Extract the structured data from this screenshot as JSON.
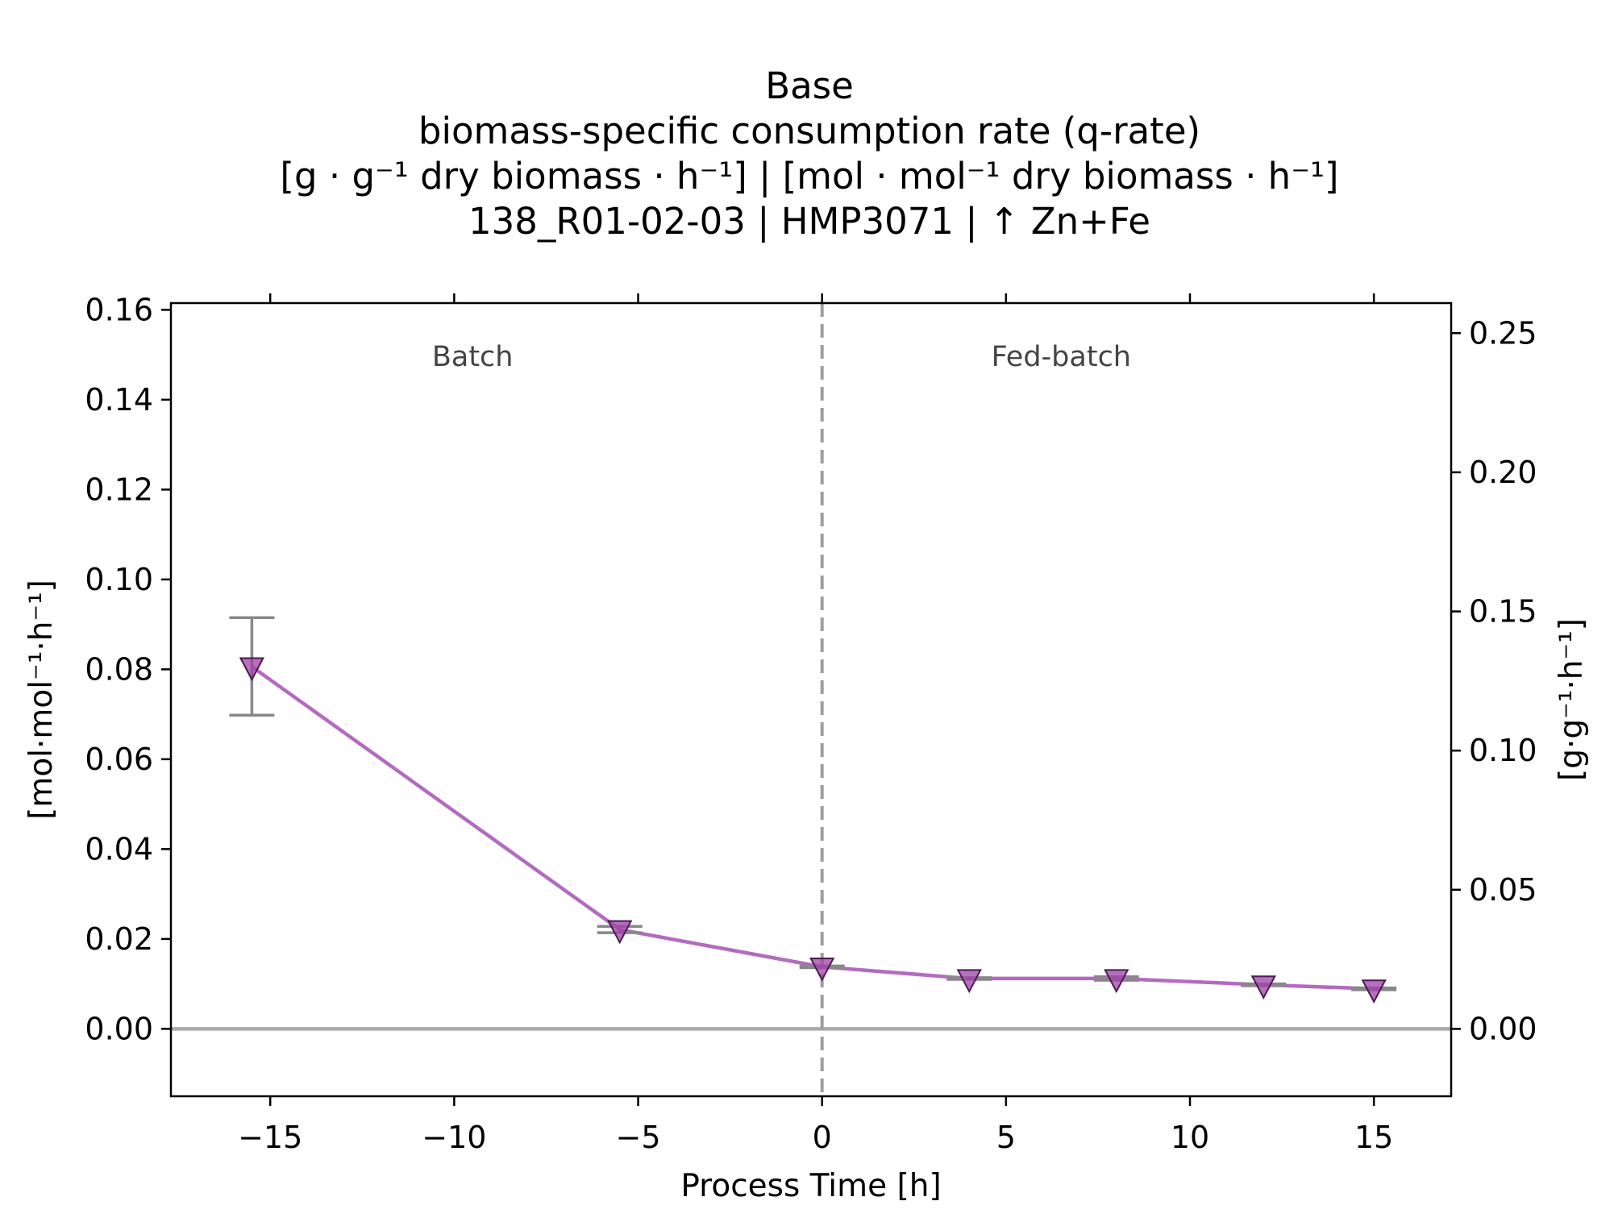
{
  "chart_data": {
    "type": "line",
    "title_lines": [
      "Base",
      "biomass-specific consumption rate (q-rate)",
      "[g · g⁻¹ dry biomass · h⁻¹]    |    [mol · mol⁻¹ dry biomass · h⁻¹]",
      "138_R01-02-03  |  HMP3071  |  ↑ Zn+Fe"
    ],
    "xlabel": "Process Time [h]",
    "ylabel_left": "[mol·mol⁻¹·h⁻¹]",
    "ylabel_right": "[g·g⁻¹·h⁻¹]",
    "xlim": [
      -17.7,
      17.1
    ],
    "ylim_left": [
      -0.015,
      0.1615
    ],
    "ylim_right": [
      -0.0242,
      0.2608
    ],
    "x_ticks": [
      -15,
      -10,
      -5,
      0,
      5,
      10,
      15
    ],
    "x_tick_labels": [
      "−15",
      "−10",
      "−5",
      "0",
      "5",
      "10",
      "15"
    ],
    "y_left_ticks": [
      0.0,
      0.02,
      0.04,
      0.06,
      0.08,
      0.1,
      0.12,
      0.14,
      0.16
    ],
    "y_left_tick_labels": [
      "0.00",
      "0.02",
      "0.04",
      "0.06",
      "0.08",
      "0.10",
      "0.12",
      "0.14",
      "0.16"
    ],
    "y_right_ticks": [
      0.0,
      0.05,
      0.1,
      0.15,
      0.2,
      0.25
    ],
    "y_right_tick_labels": [
      "0.00",
      "0.05",
      "0.10",
      "0.15",
      "0.20",
      "0.25"
    ],
    "phase_boundary_x": 0,
    "phases": [
      {
        "label": "Batch",
        "x": -9.5
      },
      {
        "label": "Fed-batch",
        "x": 6.5
      }
    ],
    "zero_line": true,
    "grid": false,
    "series": [
      {
        "marker": "triangle-down",
        "color": "#b36bc0",
        "marker_color": "#a040a8",
        "errorbar_color": "#888888",
        "points": [
          {
            "x": -15.5,
            "y": 0.0806,
            "err_low": 0.0698,
            "err_high": 0.0915
          },
          {
            "x": -5.5,
            "y": 0.0221,
            "err_low": 0.0214,
            "err_high": 0.0228
          },
          {
            "x": 0.0,
            "y": 0.0138,
            "err_low": 0.0136,
            "err_high": 0.014
          },
          {
            "x": 4.0,
            "y": 0.0112,
            "err_low": 0.011,
            "err_high": 0.0114
          },
          {
            "x": 8.0,
            "y": 0.0112,
            "err_low": 0.0108,
            "err_high": 0.0116
          },
          {
            "x": 12.0,
            "y": 0.0098,
            "err_low": 0.0096,
            "err_high": 0.01
          },
          {
            "x": 15.0,
            "y": 0.0089,
            "err_low": 0.0087,
            "err_high": 0.0091
          }
        ]
      }
    ]
  }
}
